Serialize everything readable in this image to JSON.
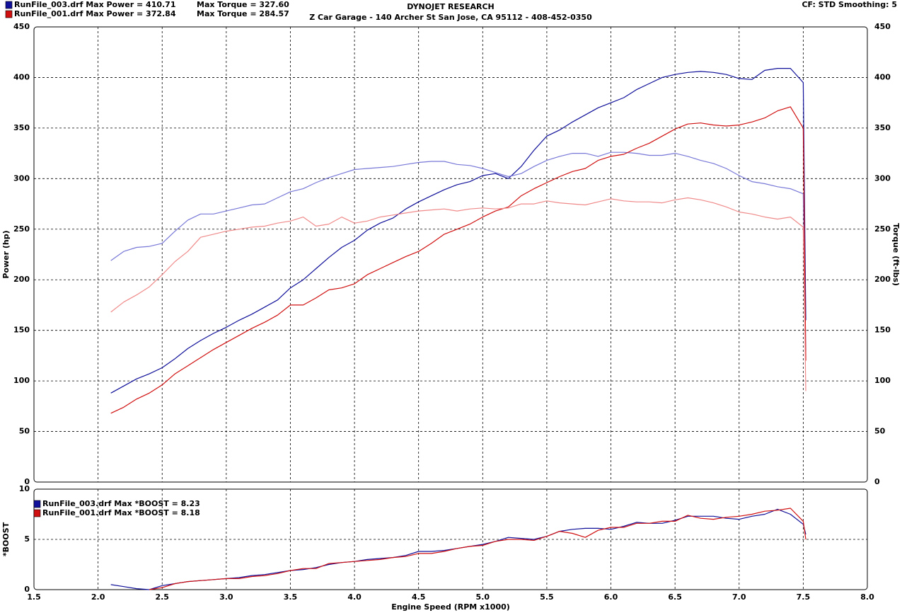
{
  "chart_data": [
    {
      "type": "line",
      "title": "DYNOJET RESEARCH",
      "subtitle": "Z Car Garage - 140 Archer St San Jose, CA 95112 - 408-452-0350",
      "annotation": "CF: STD  Smoothing: 5",
      "ylabel": "Power (hp)",
      "y2label": "Torque (ft-lbs)",
      "x": [
        2.1,
        2.2,
        2.3,
        2.4,
        2.5,
        2.6,
        2.7,
        2.8,
        2.9,
        3,
        3.1,
        3.2,
        3.3,
        3.4,
        3.5,
        3.6,
        3.7,
        3.8,
        3.9,
        4,
        4.1,
        4.2,
        4.3,
        4.4,
        4.5,
        4.6,
        4.7,
        4.8,
        4.9,
        5,
        5.1,
        5.2,
        5.3,
        5.4,
        5.5,
        5.6,
        5.7,
        5.8,
        5.9,
        6,
        6.1,
        6.2,
        6.3,
        6.4,
        6.5,
        6.6,
        6.7,
        6.8,
        6.9,
        7,
        7.1,
        7.2,
        7.3,
        7.4,
        7.5,
        7.52
      ],
      "xlim": [
        1.5,
        8
      ],
      "xticks": [
        1.5,
        2,
        2.5,
        3,
        3.5,
        4,
        4.5,
        5,
        5.5,
        6,
        6.5,
        7,
        7.5,
        8
      ],
      "ylim": [
        0,
        450
      ],
      "yticks": [
        0,
        50,
        100,
        150,
        200,
        250,
        300,
        350,
        400,
        450
      ],
      "y2lim": [
        0,
        450
      ],
      "y2ticks": [
        0,
        50,
        100,
        150,
        200,
        250,
        300,
        350,
        400,
        450
      ],
      "grid": true,
      "series": [
        {
          "name": "RunFile_003.drf Max Power = 410.71",
          "color": "#10109a",
          "values": [
            88,
            95,
            102,
            107,
            113,
            122,
            132,
            140,
            147,
            153,
            160,
            166,
            173,
            180,
            192,
            200,
            211,
            222,
            232,
            239,
            249,
            256,
            261,
            270,
            277,
            283,
            289,
            294,
            297,
            303,
            305,
            300,
            312,
            328,
            342,
            348,
            356,
            363,
            370,
            375,
            380,
            388,
            394,
            400,
            403,
            405,
            406,
            405,
            403,
            399,
            398,
            407,
            409,
            409,
            395,
            160
          ]
        },
        {
          "name": "Max Torque = 327.60",
          "color": "#7878d8",
          "axis": "y2",
          "values": [
            219,
            228,
            232,
            233,
            236,
            248,
            259,
            265,
            265,
            268,
            271,
            274,
            275,
            281,
            287,
            290,
            296,
            301,
            305,
            309,
            310,
            311,
            312,
            314,
            316,
            317,
            317,
            314,
            313,
            310,
            306,
            302,
            305,
            312,
            318,
            322,
            325,
            325,
            322,
            326,
            326,
            325,
            323,
            323,
            325,
            322,
            318,
            315,
            310,
            303,
            297,
            295,
            292,
            290,
            285,
            130
          ]
        },
        {
          "name": "RunFile_001.drf Max Power = 372.84",
          "color": "#d01010",
          "values": [
            68,
            74,
            82,
            88,
            96,
            107,
            115,
            123,
            131,
            138,
            145,
            152,
            158,
            165,
            175,
            175,
            182,
            190,
            192,
            196,
            205,
            211,
            217,
            223,
            228,
            236,
            245,
            250,
            255,
            262,
            268,
            272,
            283,
            290,
            296,
            302,
            307,
            310,
            318,
            322,
            324,
            330,
            335,
            342,
            349,
            354,
            355,
            353,
            352,
            353,
            356,
            360,
            367,
            371,
            350,
            120
          ]
        },
        {
          "name": "Max Torque = 284.57",
          "color": "#f08a8a",
          "axis": "y2",
          "values": [
            168,
            178,
            185,
            193,
            205,
            218,
            228,
            242,
            245,
            248,
            250,
            252,
            253,
            256,
            258,
            262,
            253,
            255,
            262,
            256,
            258,
            262,
            264,
            266,
            268,
            269,
            270,
            268,
            270,
            271,
            270,
            271,
            275,
            275,
            278,
            276,
            275,
            274,
            277,
            280,
            278,
            277,
            277,
            276,
            279,
            281,
            279,
            276,
            272,
            267,
            265,
            262,
            260,
            262,
            252,
            90
          ]
        }
      ]
    },
    {
      "type": "line",
      "xlabel": "Engine Speed (RPM x1000)",
      "ylabel": "*BOOST",
      "x": [
        2.1,
        2.2,
        2.3,
        2.4,
        2.5,
        2.6,
        2.7,
        2.8,
        2.9,
        3,
        3.1,
        3.2,
        3.3,
        3.4,
        3.5,
        3.6,
        3.7,
        3.8,
        3.9,
        4,
        4.1,
        4.2,
        4.3,
        4.4,
        4.5,
        4.6,
        4.7,
        4.8,
        4.9,
        5,
        5.1,
        5.2,
        5.3,
        5.4,
        5.5,
        5.6,
        5.7,
        5.8,
        5.9,
        6,
        6.1,
        6.2,
        6.3,
        6.4,
        6.5,
        6.6,
        6.7,
        6.8,
        6.9,
        7,
        7.1,
        7.2,
        7.3,
        7.4,
        7.5,
        7.52
      ],
      "xlim": [
        1.5,
        8
      ],
      "xticks": [
        1.5,
        {
          "value": 2,
          "label": "2.0"
        },
        2.5,
        {
          "value": 3,
          "label": "3.0"
        },
        3.5,
        {
          "value": 4,
          "label": "4.0"
        },
        4.5,
        {
          "value": 5,
          "label": "5.0"
        },
        5.5,
        {
          "value": 6,
          "label": "6.0"
        },
        6.5,
        {
          "value": 7,
          "label": "7.0"
        },
        7.5,
        {
          "value": 8,
          "label": "8.0"
        }
      ],
      "ylim": [
        0,
        10
      ],
      "yticks": [
        0,
        5,
        10
      ],
      "grid": true,
      "series": [
        {
          "name": "RunFile_003.drf Max *BOOST = 8.23",
          "color": "#10109a",
          "values": [
            0.5,
            0.3,
            0.1,
            0,
            0.4,
            0.6,
            0.8,
            0.9,
            1.0,
            1.1,
            1.2,
            1.4,
            1.5,
            1.7,
            1.9,
            2.0,
            2.2,
            2.5,
            2.7,
            2.8,
            3.0,
            3.1,
            3.2,
            3.4,
            3.8,
            3.8,
            3.9,
            4.1,
            4.3,
            4.5,
            4.8,
            5.2,
            5.1,
            5.0,
            5.3,
            5.8,
            6.0,
            6.1,
            6.1,
            6.0,
            6.3,
            6.7,
            6.6,
            6.6,
            6.9,
            7.3,
            7.3,
            7.3,
            7.1,
            7.0,
            7.3,
            7.5,
            8.0,
            7.5,
            6.5,
            5.5
          ]
        },
        {
          "name": "RunFile_001.drf Max *BOOST = 8.18",
          "color": "#d01010",
          "values": [
            null,
            null,
            null,
            0,
            0.2,
            0.6,
            0.8,
            0.9,
            1.0,
            1.1,
            1.1,
            1.3,
            1.4,
            1.6,
            1.9,
            2.1,
            2.1,
            2.6,
            2.7,
            2.8,
            2.9,
            3.0,
            3.2,
            3.3,
            3.6,
            3.6,
            3.8,
            4.1,
            4.3,
            4.4,
            4.8,
            5.0,
            5.0,
            4.9,
            5.3,
            5.8,
            5.6,
            5.2,
            5.9,
            6.2,
            6.2,
            6.6,
            6.6,
            6.8,
            6.8,
            7.4,
            7.1,
            7.0,
            7.2,
            7.3,
            7.5,
            7.8,
            7.9,
            8.1,
            6.8,
            5.0
          ]
        }
      ]
    }
  ]
}
